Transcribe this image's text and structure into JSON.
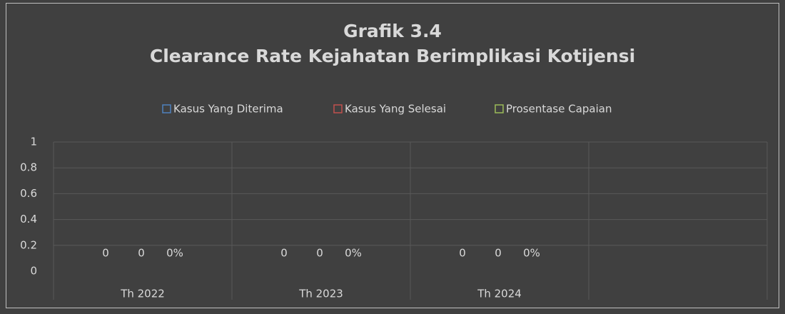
{
  "chart_data": {
    "type": "bar",
    "title": [
      "Grafik 3.4",
      "Clearance Rate Kejahatan Berimplikasi Kotijensi"
    ],
    "categories": [
      "Th 2022",
      "Th 2023",
      "Th 2024",
      null
    ],
    "series": [
      {
        "name": "Kasus Yang Diterima",
        "color": "#4f81bd",
        "values": [
          0,
          0,
          0,
          null
        ]
      },
      {
        "name": "Kasus Yang Selesai",
        "color": "#c0504d",
        "values": [
          0,
          0,
          0,
          null
        ]
      },
      {
        "name": "Prosentase Capaian",
        "color": "#9bbb59",
        "values": [
          0,
          0,
          0,
          null
        ],
        "value_labels": [
          "0%",
          "0%",
          "0%",
          null
        ]
      }
    ],
    "ylim": [
      0,
      1
    ],
    "yticks": [
      0,
      0.2,
      0.4,
      0.6,
      0.8,
      1
    ],
    "grid": true,
    "legend": "top"
  }
}
